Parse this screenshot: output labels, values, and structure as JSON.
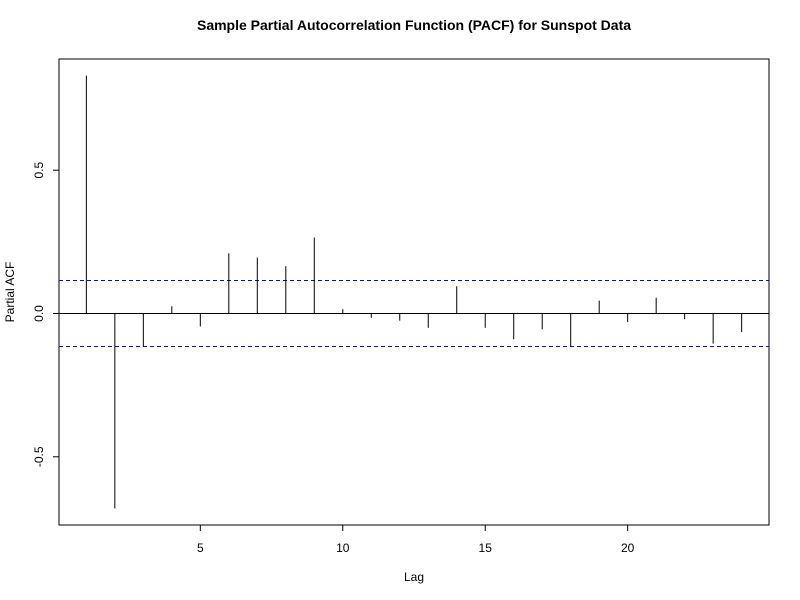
{
  "chart_data": {
    "type": "bar",
    "title": "Sample Partial Autocorrelation Function (PACF) for Sunspot Data",
    "xlabel": "Lag",
    "ylabel": "Partial ACF",
    "x": [
      1,
      2,
      3,
      4,
      5,
      6,
      7,
      8,
      9,
      10,
      11,
      12,
      13,
      14,
      15,
      16,
      17,
      18,
      19,
      20,
      21,
      22,
      23,
      24
    ],
    "values": [
      0.83,
      -0.68,
      -0.115,
      0.025,
      -0.045,
      0.21,
      0.195,
      0.165,
      0.265,
      0.015,
      -0.015,
      -0.025,
      -0.05,
      0.095,
      -0.05,
      -0.09,
      -0.055,
      -0.115,
      0.045,
      -0.03,
      0.055,
      -0.02,
      -0.105,
      -0.065
    ],
    "xlim": [
      0.04,
      24.96
    ],
    "ylim": [
      -0.738,
      0.888
    ],
    "xticks": [
      5,
      10,
      15,
      20
    ],
    "xtick_labels": [
      "5",
      "10",
      "15",
      "20"
    ],
    "yticks": [
      -0.5,
      0.0,
      0.5
    ],
    "ytick_labels": [
      "-0.5",
      "0.0",
      "0.5"
    ],
    "confidence_band": [
      -0.115,
      0.115
    ],
    "confidence_color": "#0000ff",
    "spike_color": "#000000",
    "grid": false,
    "legend": "none"
  }
}
